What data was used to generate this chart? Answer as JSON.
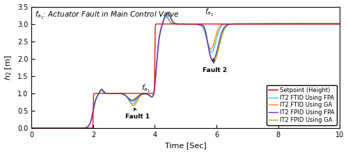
{
  "title": "$f_{a_1}$: Actuator Fault in Main Control Valve",
  "xlabel": "Time [Sec]",
  "ylabel": "$h_2$ [m]",
  "xlim": [
    0,
    10
  ],
  "ylim": [
    0,
    3.5
  ],
  "yticks": [
    0,
    0.5,
    1.0,
    1.5,
    2.0,
    2.5,
    3.0,
    3.5
  ],
  "xticks": [
    0,
    2,
    4,
    6,
    8,
    10
  ],
  "setpoint_color": "#EE1111",
  "ftid_fpa_color": "#22CCEE",
  "ftid_ga_color": "#FF8800",
  "fpid_fpa_color": "#7722CC",
  "fpid_ga_color": "#88BB00",
  "legend_labels": [
    "Setpoint (Height)",
    "IT2 FTID Using FPA",
    "IT2 FTID Using GA",
    "IT2 FPID Using FPA",
    "IT2 FPID Using GA"
  ],
  "title_fontsize": 7.5,
  "label_fontsize": 8,
  "legend_fontsize": 6.0,
  "tick_fontsize": 7
}
